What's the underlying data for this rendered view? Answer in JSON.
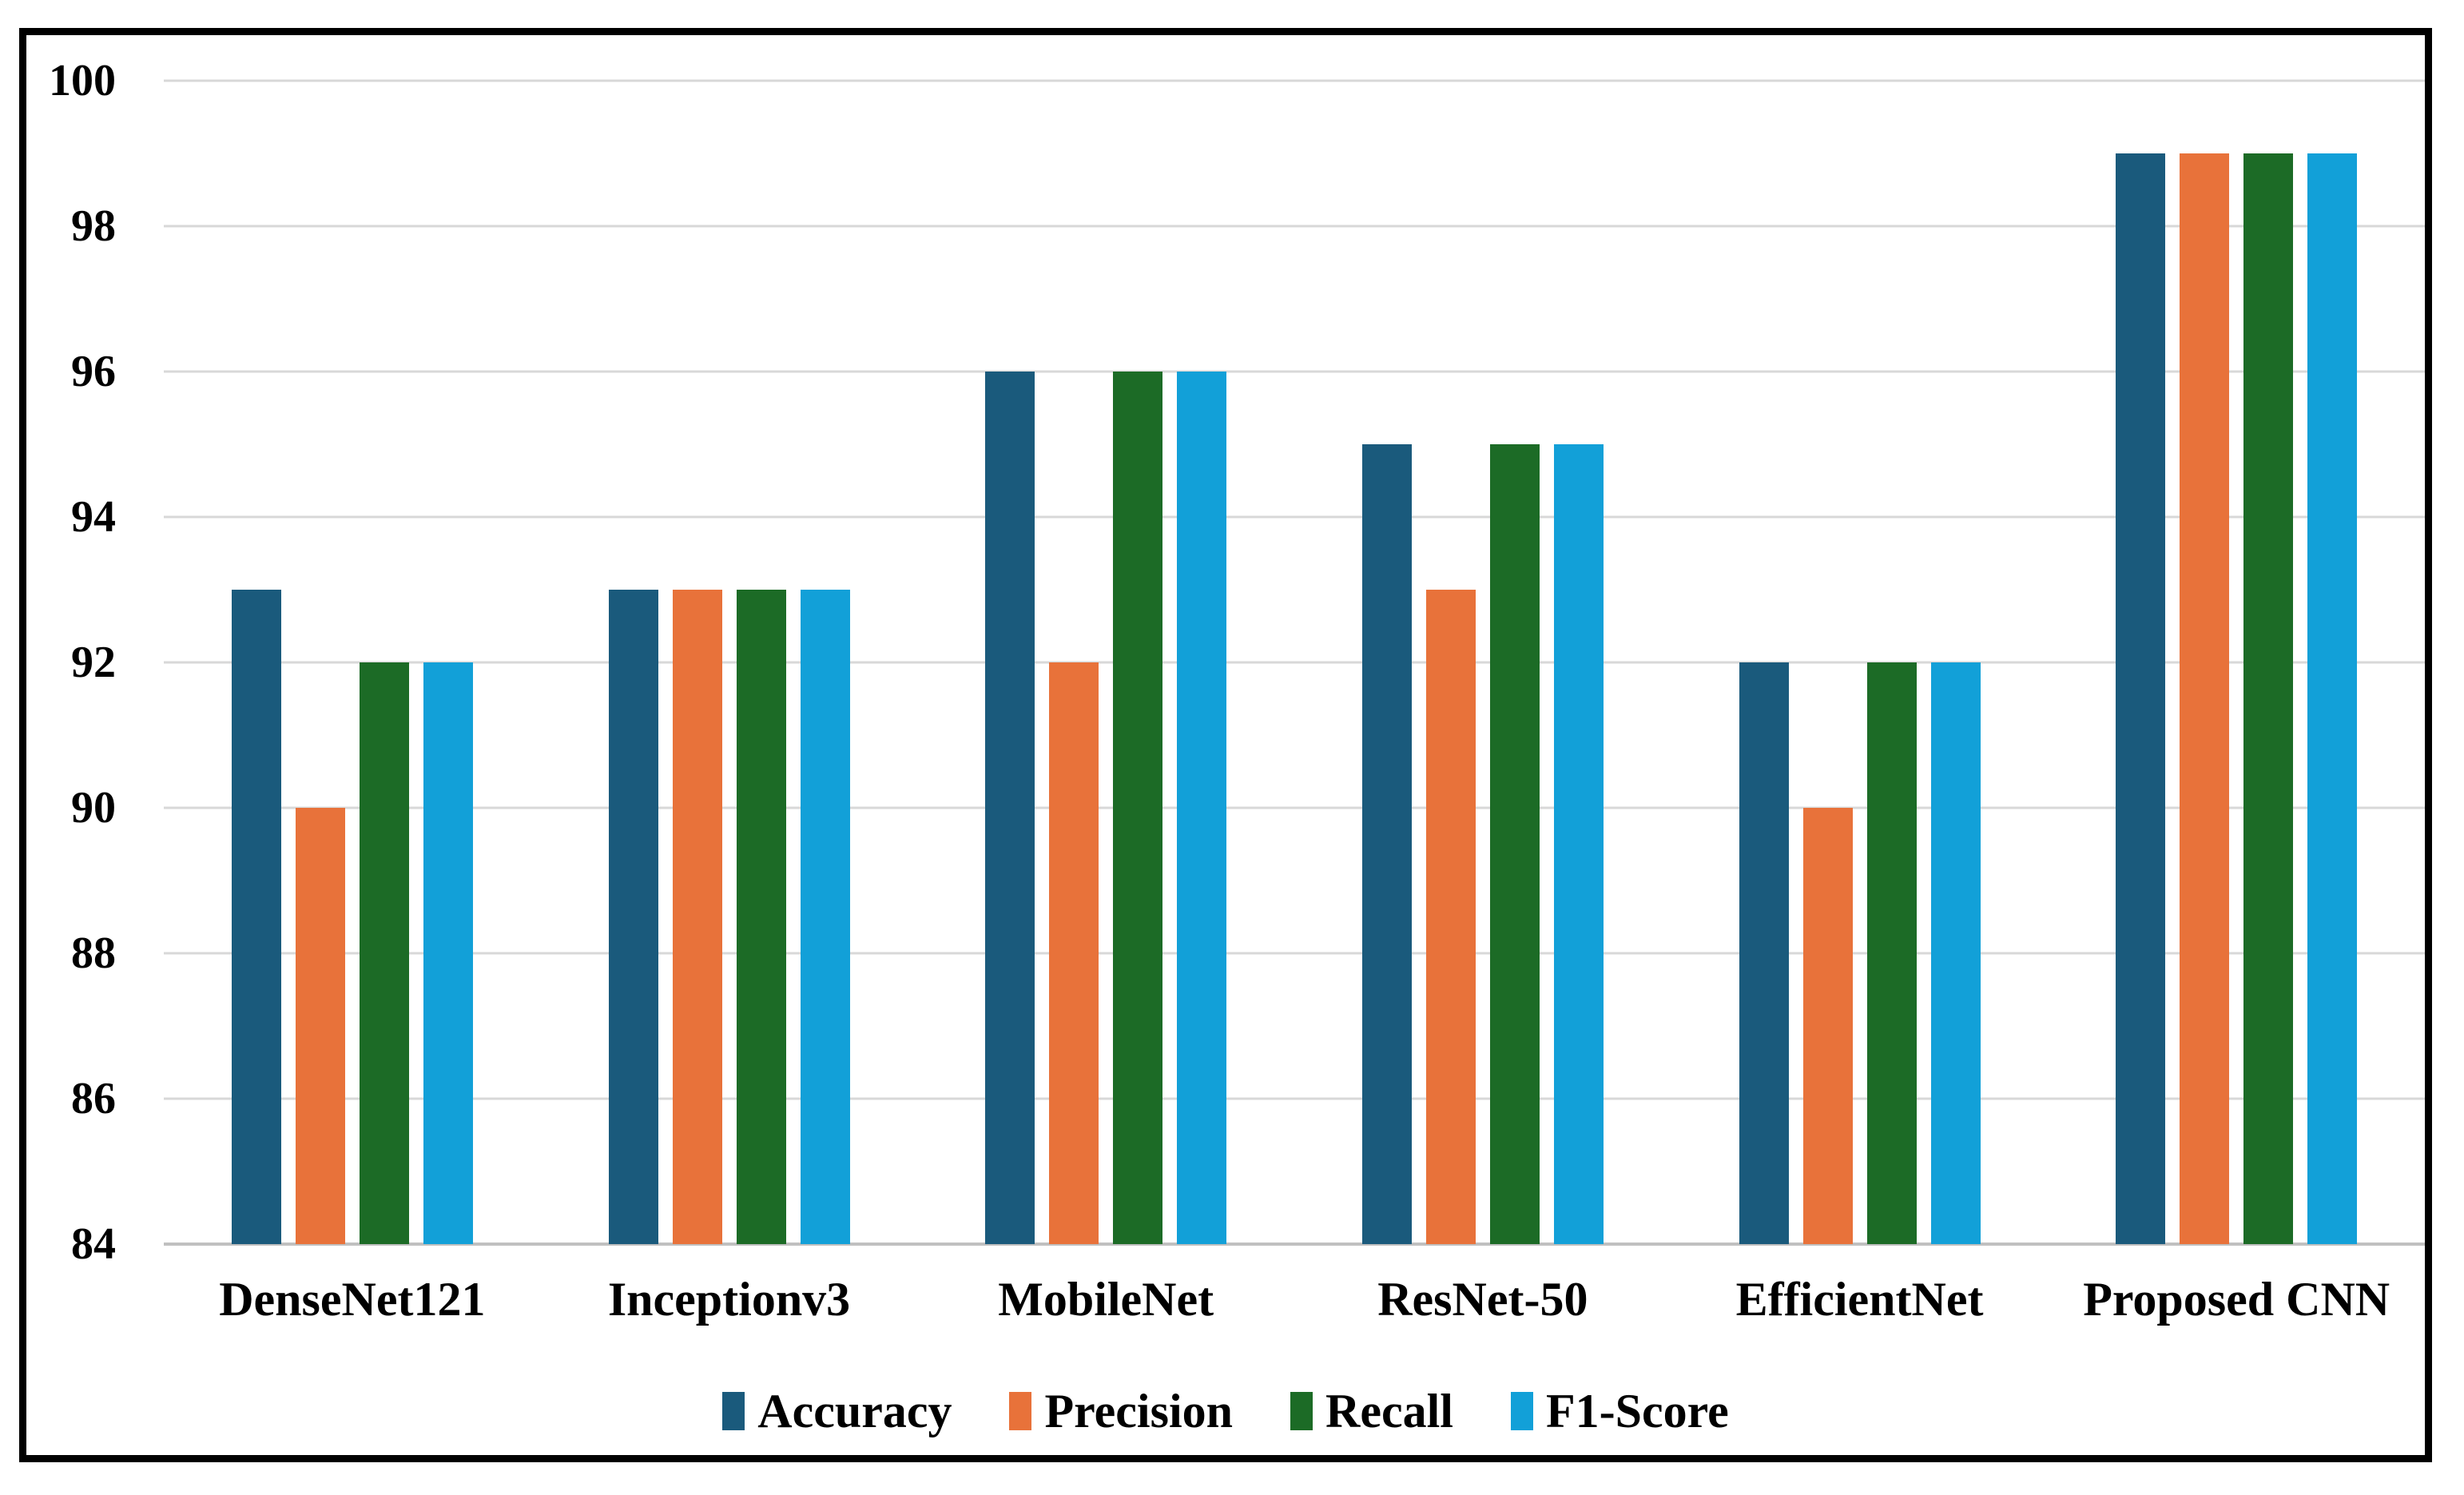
{
  "chart_data": {
    "type": "bar",
    "title": "",
    "categories": [
      "DenseNet121",
      "Inceptionv3",
      "MobileNet",
      "ResNet-50",
      "EfficientNet",
      "Proposed CNN"
    ],
    "series": [
      {
        "name": "Accuracy",
        "color": "#1A5A7C",
        "values": [
          93,
          93,
          96,
          95,
          92,
          99
        ]
      },
      {
        "name": "Precision",
        "color": "#E8723A",
        "values": [
          90,
          93,
          92,
          93,
          90,
          99
        ]
      },
      {
        "name": "Recall",
        "color": "#1C6B26",
        "values": [
          92,
          93,
          96,
          95,
          92,
          99
        ]
      },
      {
        "name": "F1-Score",
        "color": "#12A0D8",
        "values": [
          92,
          93,
          96,
          95,
          92,
          99
        ]
      }
    ],
    "xlabel": "",
    "ylabel": "",
    "ylim": [
      84,
      100
    ],
    "yticks": [
      "84",
      "86",
      "88",
      "90",
      "92",
      "94",
      "96",
      "98",
      "100"
    ],
    "grid": true,
    "legend_position": "bottom"
  },
  "style_colors": {
    "gridline": "#D8D8D8",
    "axis_baseline": "#C0C0C0",
    "frame_border": "#000000",
    "background": "#FFFFFF",
    "text": "#000000"
  }
}
